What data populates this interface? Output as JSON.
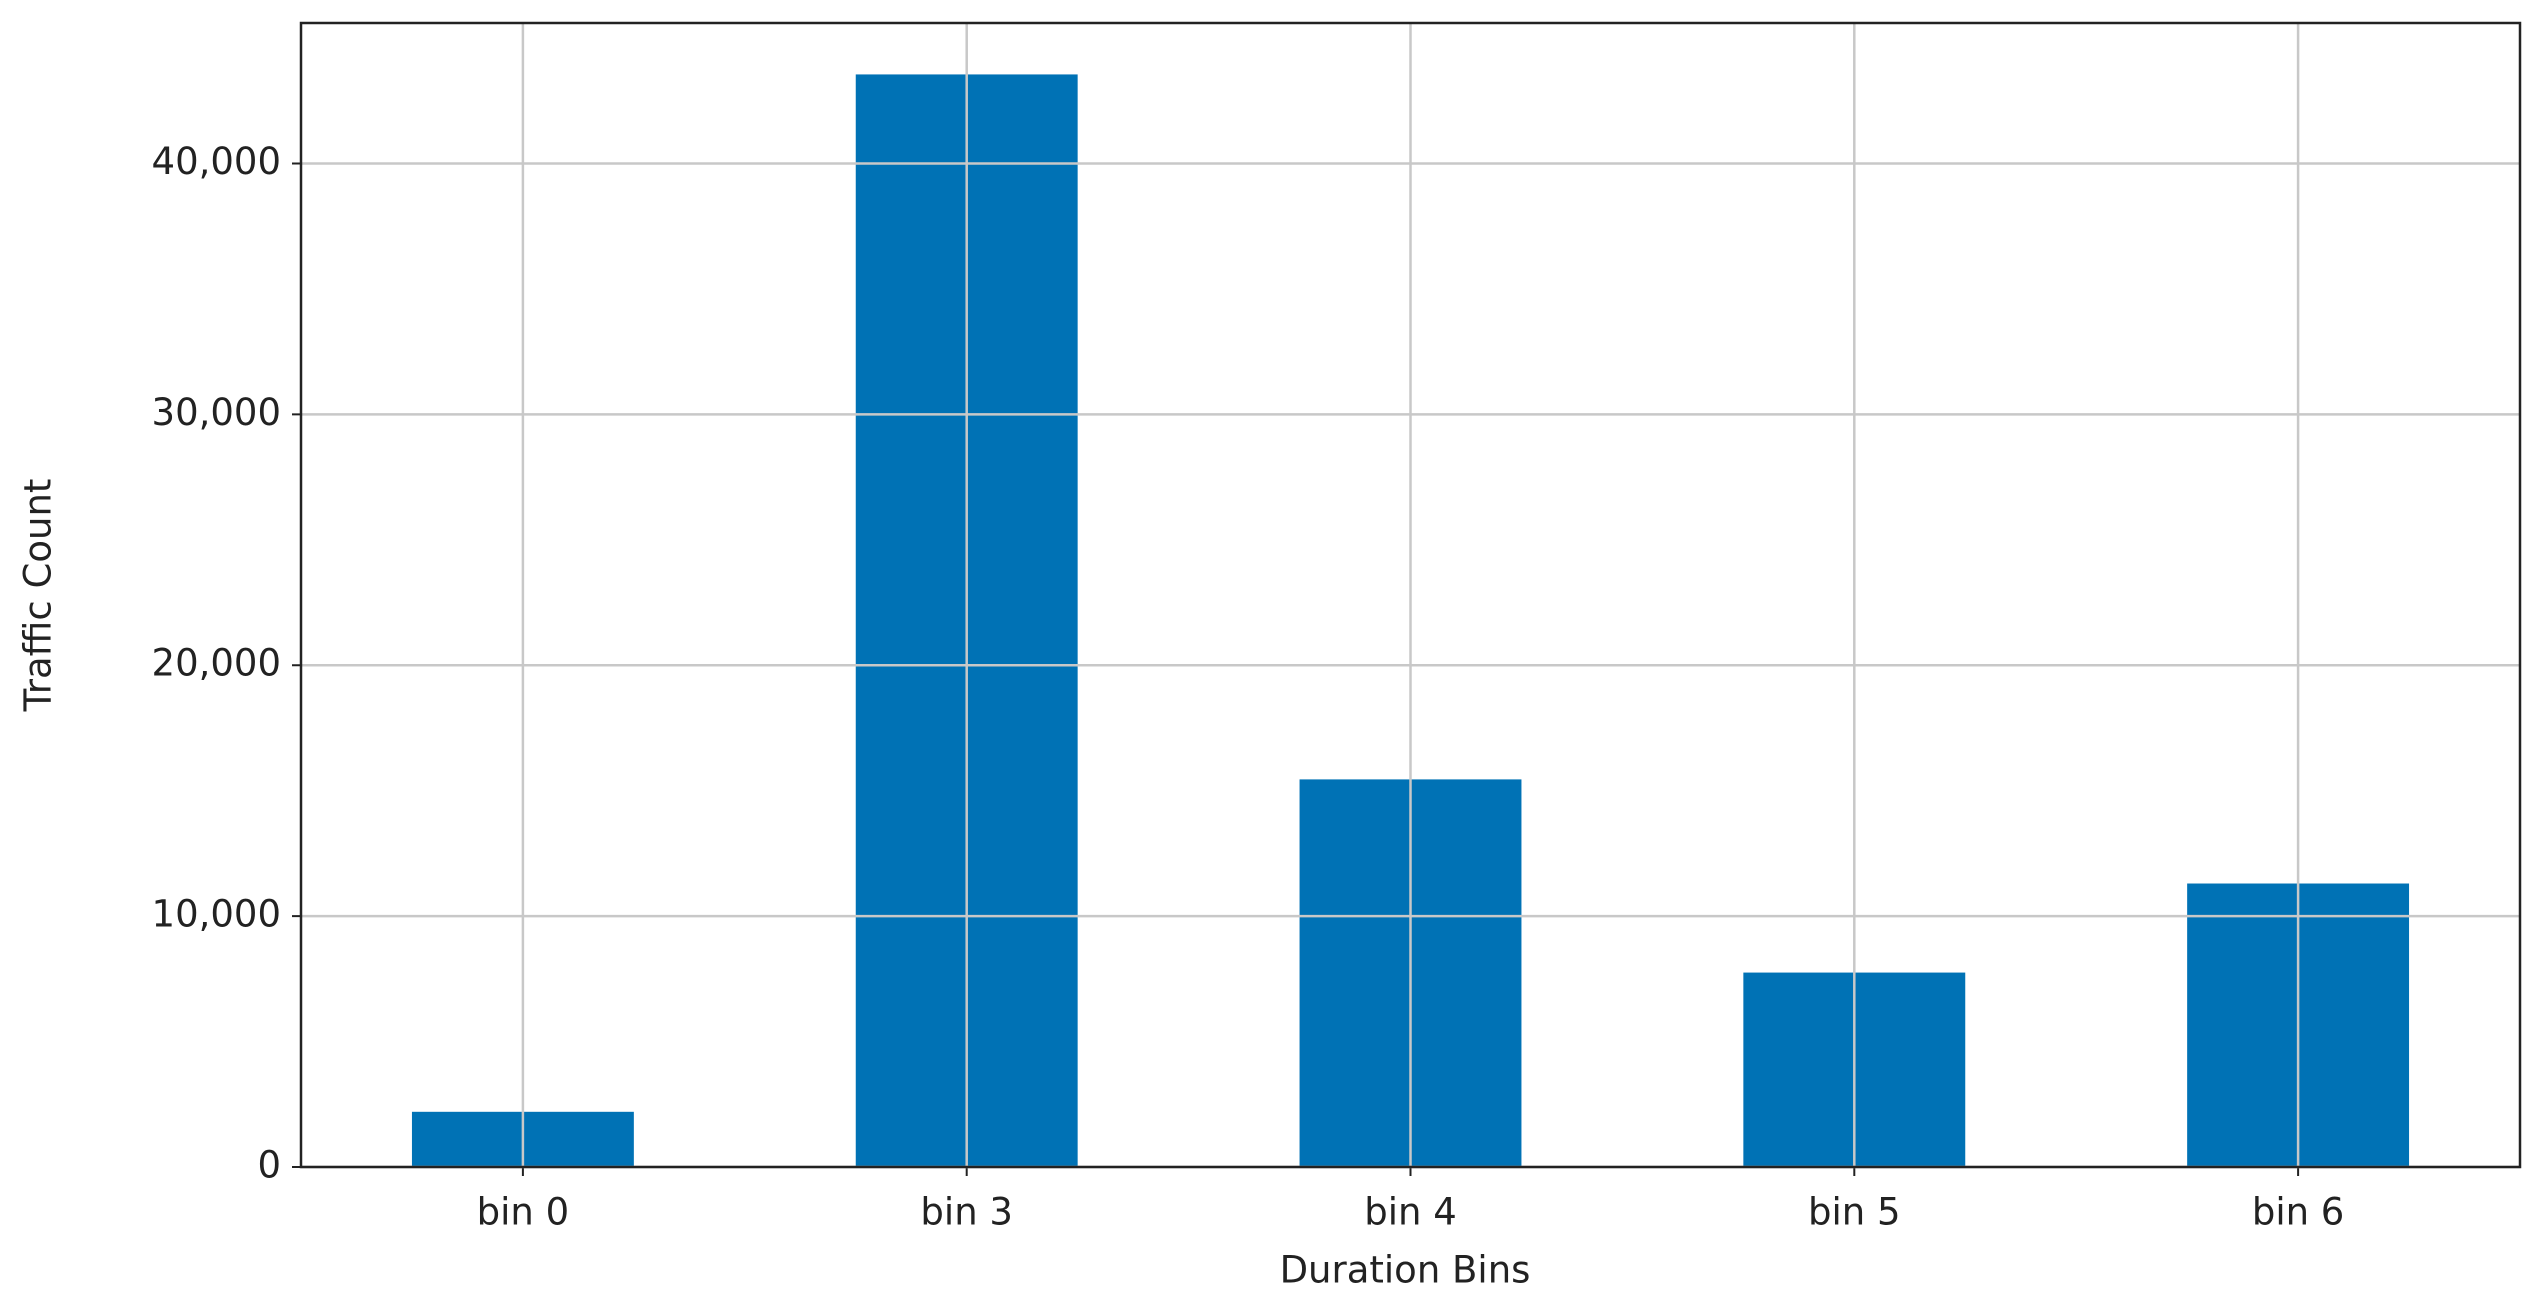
{
  "chart_data": {
    "type": "bar",
    "x_label": "Duration Bins",
    "y_label": "Traffic Count",
    "categories": [
      "bin 0",
      "bin 3",
      "bin 4",
      "bin 5",
      "bin 6"
    ],
    "values": [
      2200,
      43550,
      15450,
      7750,
      11300
    ],
    "color": "#0072b5",
    "ylim": [
      0,
      45600
    ],
    "yticks": [
      0,
      {
        "value": 10000,
        "label": "10,000"
      },
      {
        "value": 20000,
        "label": "20,000"
      },
      {
        "value": 30000,
        "label": "30,000"
      },
      {
        "value": 40000,
        "label": "40,000"
      }
    ],
    "grid": true
  }
}
